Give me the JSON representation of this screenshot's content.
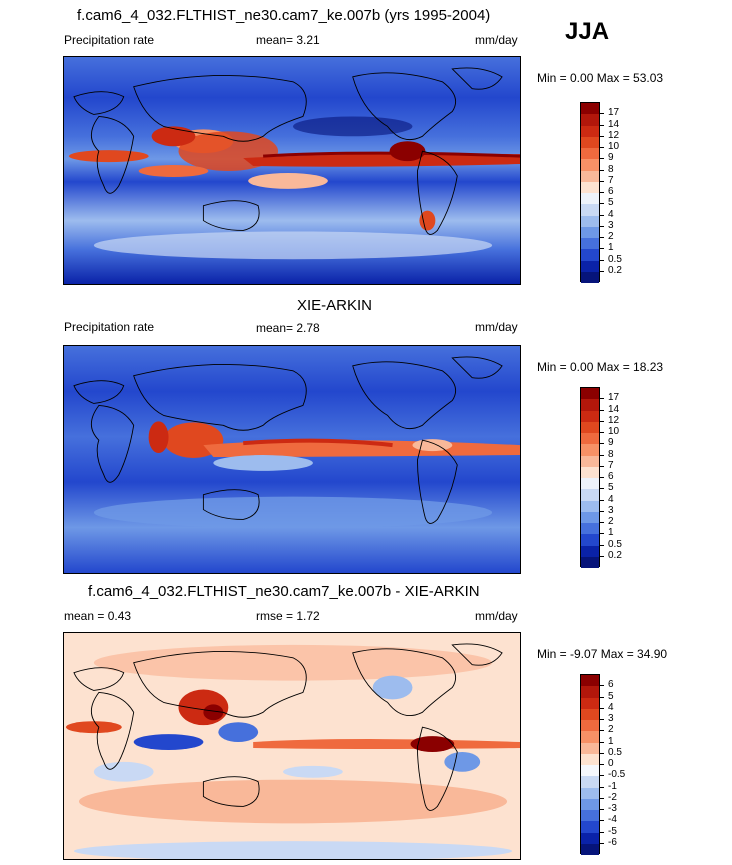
{
  "season": "JJA",
  "panels": [
    {
      "id": "model",
      "title": "f.cam6_4_032.FLTHIST_ne30.cam7_ke.007b (yrs 1995-2004)",
      "left_label": "Precipitation rate",
      "mid_label": "mean=   3.21",
      "units": "mm/day",
      "minmax": "Min =   0.00 Max =  53.03",
      "levels": [
        "17",
        "14",
        "12",
        "10",
        "9",
        "8",
        "7",
        "6",
        "5",
        "4",
        "3",
        "2",
        "1",
        "0.5",
        "0.2"
      ],
      "colors": [
        "#8b0000",
        "#b2170b",
        "#cc2a12",
        "#e0481f",
        "#ef6a3e",
        "#f79166",
        "#f9b899",
        "#fde2d0",
        "#eef3fb",
        "#c9d9f4",
        "#9dbcee",
        "#6e98e6",
        "#4670dc",
        "#2347cd",
        "#0a22a8",
        "#06147a"
      ]
    },
    {
      "id": "obs",
      "title": "XIE-ARKIN",
      "left_label": "Precipitation rate",
      "mid_label": "mean=   2.78",
      "units": "mm/day",
      "minmax": "Min =   0.00 Max =  18.23",
      "levels": [
        "17",
        "14",
        "12",
        "10",
        "9",
        "8",
        "7",
        "6",
        "5",
        "4",
        "3",
        "2",
        "1",
        "0.5",
        "0.2"
      ],
      "colors": [
        "#8b0000",
        "#b2170b",
        "#cc2a12",
        "#e0481f",
        "#ef6a3e",
        "#f79166",
        "#f9b899",
        "#fde2d0",
        "#eef3fb",
        "#c9d9f4",
        "#9dbcee",
        "#6e98e6",
        "#4670dc",
        "#2347cd",
        "#0a22a8",
        "#06147a"
      ]
    },
    {
      "id": "diff",
      "title": "f.cam6_4_032.FLTHIST_ne30.cam7_ke.007b - XIE-ARKIN",
      "left_label": "mean =   0.43",
      "mid_label": "rmse =   1.72",
      "units": "mm/day",
      "minmax": "Min =  -9.07 Max =  34.90",
      "levels": [
        "6",
        "5",
        "4",
        "3",
        "2",
        "1",
        "0.5",
        "0",
        "-0.5",
        "-1",
        "-2",
        "-3",
        "-4",
        "-5",
        "-6"
      ],
      "colors": [
        "#8b0000",
        "#b2170b",
        "#cc2a12",
        "#e0481f",
        "#ef6a3e",
        "#f79166",
        "#f9b899",
        "#fde2d0",
        "#f5f7fc",
        "#c9d9f4",
        "#9dbcee",
        "#6e98e6",
        "#4670dc",
        "#2347cd",
        "#0a22a8",
        "#06147a"
      ]
    }
  ]
}
